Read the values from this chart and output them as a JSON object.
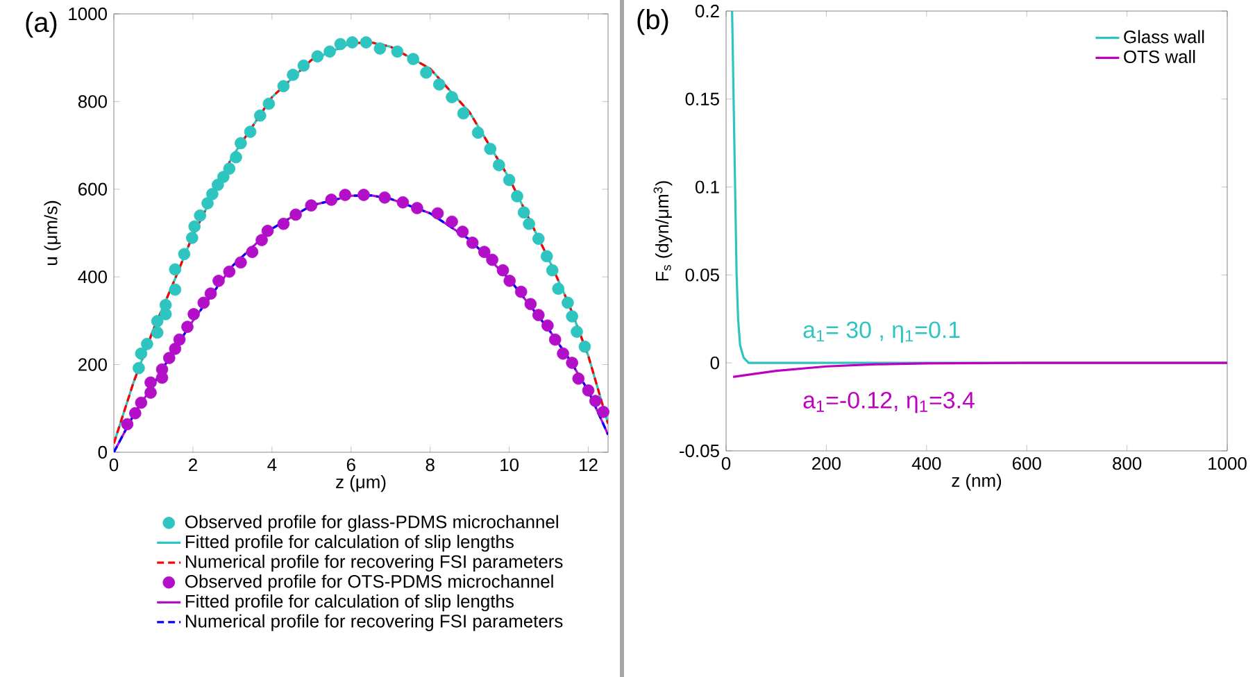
{
  "chart_data": [
    {
      "type": "line",
      "title": "(a)",
      "xlabel": "z (μm)",
      "ylabel": "u (μm/s)",
      "xlim": [
        0,
        12.5
      ],
      "ylim": [
        0,
        1000
      ],
      "xticks": [
        0,
        2,
        4,
        6,
        8,
        10,
        12
      ],
      "yticks": [
        0,
        200,
        400,
        600,
        800,
        1000
      ],
      "grid": false,
      "legend": "bottom",
      "series": [
        {
          "name": "Observed profile for glass-PDMS microchannel",
          "type": "scatter",
          "marker": "circle",
          "color": "#2ec4c0",
          "x": [
            0.63,
            0.69,
            0.84,
            1.1,
            1.1,
            1.31,
            1.31,
            1.55,
            1.55,
            1.78,
            1.98,
            2.04,
            2.18,
            2.37,
            2.49,
            2.63,
            2.77,
            2.92,
            3.09,
            3.21,
            3.45,
            3.7,
            3.92,
            4.29,
            4.53,
            4.8,
            5.15,
            5.46,
            5.73,
            6.03,
            6.38,
            6.73,
            7.17,
            7.57,
            7.9,
            8.23,
            8.55,
            8.84,
            9.21,
            9.52,
            9.74,
            10.0,
            10.2,
            10.37,
            10.5,
            10.74,
            10.95,
            11.09,
            11.24,
            11.48,
            11.59,
            11.71,
            11.91
          ],
          "values": [
            192,
            225,
            247,
            273,
            299,
            315,
            336,
            371,
            417,
            452,
            489,
            515,
            540,
            568,
            589,
            610,
            628,
            647,
            673,
            705,
            731,
            768,
            795,
            835,
            861,
            882,
            903,
            914,
            931,
            935,
            935,
            921,
            914,
            897,
            866,
            839,
            810,
            773,
            729,
            692,
            655,
            621,
            584,
            547,
            521,
            487,
            447,
            415,
            373,
            341,
            310,
            275,
            241
          ]
        },
        {
          "name": "Fitted profile for calculation of slip lengths",
          "color": "#2ec4c0",
          "line_style": "solid",
          "x": [
            0,
            0.5,
            1,
            1.5,
            2,
            3,
            4,
            5,
            6,
            6.5,
            7,
            8,
            9,
            10,
            11,
            11.5,
            12,
            12.5
          ],
          "values": [
            20,
            160,
            280,
            385,
            495,
            675,
            810,
            895,
            933,
            935,
            925,
            875,
            775,
            625,
            440,
            340,
            220,
            65
          ]
        },
        {
          "name": "Numerical profile for recovering FSI parameters",
          "color": "#ff0000",
          "line_style": "dashed",
          "x": [
            0,
            0.5,
            1,
            1.5,
            2,
            3,
            4,
            5,
            6,
            6.5,
            7,
            8,
            9,
            10,
            11,
            11.5,
            12,
            12.5
          ],
          "values": [
            20,
            160,
            280,
            385,
            495,
            675,
            810,
            895,
            933,
            935,
            925,
            875,
            775,
            625,
            440,
            340,
            220,
            65
          ]
        },
        {
          "name": "Observed profile for OTS-PDMS microchannel",
          "type": "scatter",
          "marker": "circle",
          "color": "#b40fc8",
          "x": [
            0.34,
            0.54,
            0.69,
            0.93,
            0.93,
            1.22,
            1.22,
            1.4,
            1.55,
            1.66,
            1.86,
            2.02,
            2.27,
            2.45,
            2.65,
            2.92,
            3.21,
            3.5,
            3.74,
            3.89,
            4.29,
            4.6,
            4.99,
            5.5,
            5.85,
            6.32,
            6.85,
            7.31,
            7.67,
            8.19,
            8.55,
            8.82,
            9.07,
            9.37,
            9.57,
            9.84,
            10.01,
            10.3,
            10.54,
            10.74,
            10.97,
            11.16,
            11.36,
            11.59,
            11.75,
            12.0,
            12.18,
            12.38
          ],
          "values": [
            64,
            89,
            113,
            136,
            159,
            170,
            189,
            215,
            236,
            257,
            286,
            315,
            341,
            362,
            391,
            412,
            433,
            457,
            484,
            505,
            521,
            542,
            563,
            576,
            587,
            587,
            581,
            570,
            557,
            545,
            526,
            503,
            478,
            457,
            439,
            415,
            391,
            366,
            338,
            313,
            289,
            257,
            225,
            204,
            168,
            141,
            117,
            92
          ]
        },
        {
          "name": "Fitted profile for calculation of slip lengths",
          "color": "#b40fc8",
          "line_style": "solid",
          "x": [
            0,
            0.5,
            1,
            1.5,
            2,
            3,
            4,
            5,
            6,
            6.5,
            7,
            8,
            9,
            10,
            11,
            11.5,
            12,
            12.5
          ],
          "values": [
            0,
            85,
            155,
            230,
            300,
            425,
            510,
            563,
            585,
            586,
            578,
            545,
            485,
            395,
            280,
            215,
            140,
            40
          ]
        },
        {
          "name": "Numerical profile for recovering FSI parameters",
          "color": "#0000ff",
          "line_style": "dashed",
          "x": [
            0,
            0.5,
            1,
            1.5,
            2,
            3,
            4,
            5,
            6,
            6.5,
            7,
            8,
            9,
            10,
            11,
            11.5,
            12,
            12.5
          ],
          "values": [
            0,
            85,
            155,
            230,
            300,
            425,
            510,
            563,
            585,
            586,
            578,
            545,
            485,
            395,
            280,
            215,
            140,
            40
          ]
        }
      ]
    },
    {
      "type": "line",
      "title": "(b)",
      "xlabel": "z (nm)",
      "ylabel": "F$_{s}$ (dyn/μm$^{3}$)",
      "xlim": [
        0,
        1000
      ],
      "ylim": [
        -0.05,
        0.2
      ],
      "xticks": [
        0,
        200,
        400,
        600,
        800,
        1000
      ],
      "yticks": [
        -0.05,
        0,
        0.05,
        0.1,
        0.15,
        0.2
      ],
      "grid": false,
      "legend": "top right",
      "series": [
        {
          "name": "Glass wall",
          "color": "#2ec4c0",
          "line_style": "solid",
          "x": [
            12,
            15,
            18,
            21,
            24,
            28,
            35,
            45,
            100,
            1000
          ],
          "values": [
            0.2,
            0.15,
            0.1,
            0.05,
            0.025,
            0.01,
            0.003,
            0,
            0,
            0
          ]
        },
        {
          "name": "OTS wall",
          "color": "#c000c0",
          "line_style": "solid",
          "x": [
            14,
            50,
            100,
            200,
            300,
            400,
            600,
            1000
          ],
          "values": [
            -0.008,
            -0.0065,
            -0.0045,
            -0.002,
            -0.0008,
            -0.0003,
            0,
            0
          ]
        }
      ],
      "annotations": [
        "a$_{1}$= 30 , η$_{1}$=0.1",
        "a$_{1}$=-0.12, η$_{1}$=3.4"
      ]
    }
  ]
}
